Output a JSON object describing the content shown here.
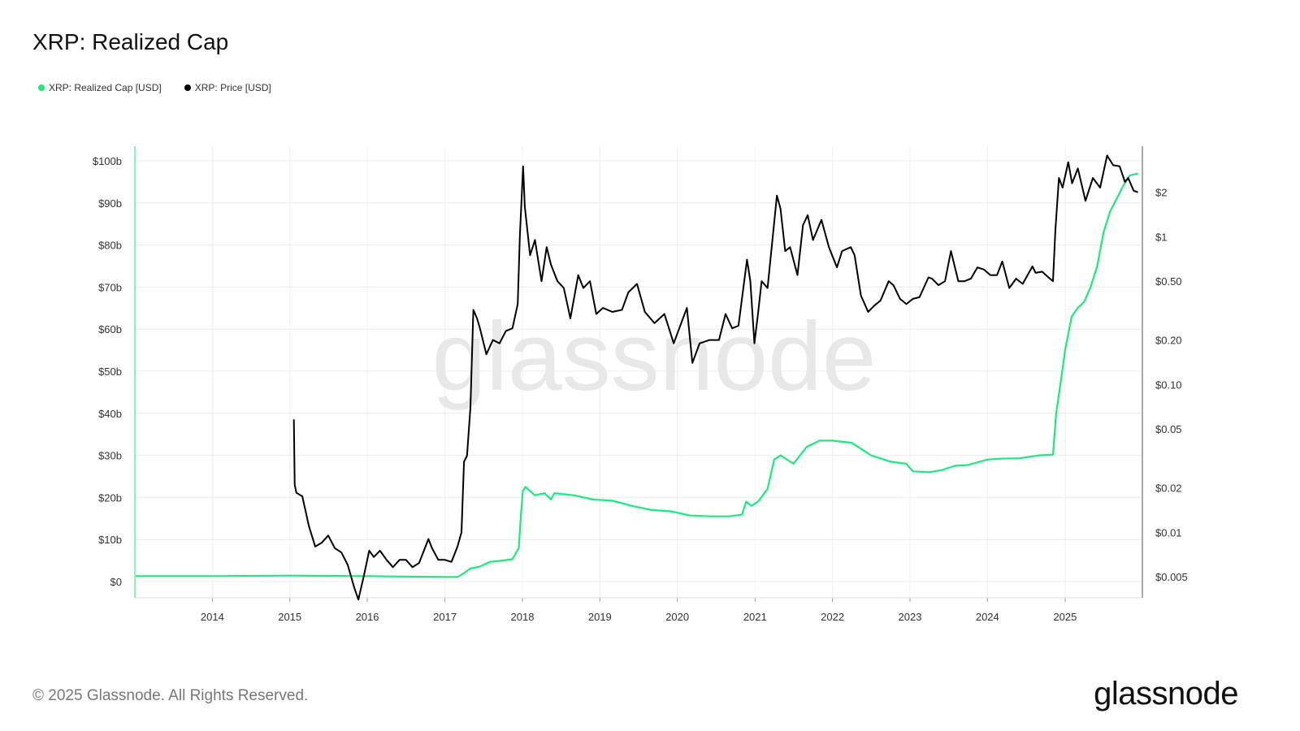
{
  "header": {
    "title": "XRP: Realized Cap"
  },
  "legend": [
    {
      "label": "XRP: Realized Cap [USD]",
      "color": "#1ee87e"
    },
    {
      "label": "XRP: Price [USD]",
      "color": "#000000"
    }
  ],
  "watermark": "glassnode",
  "footer": {
    "copyright": "© 2025 Glassnode. All Rights Reserved.",
    "logo": "glassnode"
  },
  "chart_data": {
    "type": "line",
    "title": "XRP: Realized Cap",
    "x_range": [
      "2013-01",
      "2025-12"
    ],
    "x_ticks": [
      "2014",
      "2015",
      "2016",
      "2017",
      "2018",
      "2019",
      "2020",
      "2021",
      "2022",
      "2023",
      "2024",
      "2025"
    ],
    "y_left": {
      "scale": "linear",
      "range": [
        0,
        100
      ],
      "ticks": [
        "$0",
        "$10b",
        "$20b",
        "$30b",
        "$40b",
        "$50b",
        "$60b",
        "$70b",
        "$80b",
        "$90b",
        "$100b"
      ]
    },
    "y_right": {
      "scale": "log",
      "range": [
        0.0036,
        4.1
      ],
      "ticks": [
        {
          "label": "$0.005",
          "value": 0.005
        },
        {
          "label": "$0.01",
          "value": 0.01
        },
        {
          "label": "$0.02",
          "value": 0.02
        },
        {
          "label": "$0.05",
          "value": 0.05
        },
        {
          "label": "$0.10",
          "value": 0.1
        },
        {
          "label": "$0.20",
          "value": 0.2
        },
        {
          "label": "$0.50",
          "value": 0.5
        },
        {
          "label": "$1",
          "value": 1
        },
        {
          "label": "$2",
          "value": 2
        }
      ]
    },
    "grid": true,
    "legend_position": "top-left",
    "series": [
      {
        "name": "XRP: Realized Cap [USD]",
        "axis": "left",
        "unit": "billion USD",
        "color": "#1ee87e",
        "points": [
          [
            "2013-01-05",
            1.3
          ],
          [
            "2013-02-01",
            1.3
          ],
          [
            "2014-01-01",
            1.3
          ],
          [
            "2015-01-01",
            1.4
          ],
          [
            "2016-01-01",
            1.3
          ],
          [
            "2016-06-01",
            1.2
          ],
          [
            "2017-01-01",
            1.1
          ],
          [
            "2017-03-01",
            1.1
          ],
          [
            "2017-04-01",
            2.0
          ],
          [
            "2017-05-01",
            3.1
          ],
          [
            "2017-06-15",
            3.6
          ],
          [
            "2017-08-01",
            4.7
          ],
          [
            "2017-09-15",
            4.9
          ],
          [
            "2017-11-15",
            5.3
          ],
          [
            "2017-12-15",
            8.0
          ],
          [
            "2017-12-25",
            16.0
          ],
          [
            "2018-01-03",
            21.5
          ],
          [
            "2018-01-15",
            22.5
          ],
          [
            "2018-03-01",
            20.5
          ],
          [
            "2018-04-15",
            21.0
          ],
          [
            "2018-05-15",
            19.5
          ],
          [
            "2018-06-01",
            21.0
          ],
          [
            "2018-09-01",
            20.5
          ],
          [
            "2018-12-01",
            19.5
          ],
          [
            "2019-03-01",
            19.2
          ],
          [
            "2019-06-01",
            18.0
          ],
          [
            "2019-09-01",
            17.0
          ],
          [
            "2019-12-01",
            16.7
          ],
          [
            "2020-03-01",
            15.7
          ],
          [
            "2020-06-01",
            15.5
          ],
          [
            "2020-09-01",
            15.5
          ],
          [
            "2020-11-01",
            15.9
          ],
          [
            "2020-11-20",
            19.0
          ],
          [
            "2020-12-15",
            18.0
          ],
          [
            "2021-01-15",
            19.0
          ],
          [
            "2021-03-01",
            22.0
          ],
          [
            "2021-04-01",
            29.0
          ],
          [
            "2021-05-01",
            30.0
          ],
          [
            "2021-07-01",
            28.0
          ],
          [
            "2021-09-01",
            32.0
          ],
          [
            "2021-11-01",
            33.5
          ],
          [
            "2022-01-01",
            33.5
          ],
          [
            "2022-04-01",
            33.0
          ],
          [
            "2022-07-01",
            30.0
          ],
          [
            "2022-10-01",
            28.5
          ],
          [
            "2022-12-15",
            28.0
          ],
          [
            "2023-01-15",
            26.2
          ],
          [
            "2023-04-01",
            26.0
          ],
          [
            "2023-06-01",
            26.5
          ],
          [
            "2023-08-01",
            27.5
          ],
          [
            "2023-10-01",
            27.7
          ],
          [
            "2024-01-01",
            29.0
          ],
          [
            "2024-03-01",
            29.2
          ],
          [
            "2024-06-01",
            29.3
          ],
          [
            "2024-09-01",
            30.0
          ],
          [
            "2024-11-05",
            30.2
          ],
          [
            "2024-11-20",
            40.0
          ],
          [
            "2024-12-10",
            47.0
          ],
          [
            "2025-01-01",
            55.0
          ],
          [
            "2025-02-01",
            63.0
          ],
          [
            "2025-03-01",
            65.0
          ],
          [
            "2025-04-01",
            66.5
          ],
          [
            "2025-05-01",
            70.0
          ],
          [
            "2025-06-01",
            75.0
          ],
          [
            "2025-07-01",
            83.0
          ],
          [
            "2025-08-01",
            88.0
          ],
          [
            "2025-09-01",
            91.0
          ],
          [
            "2025-10-01",
            94.0
          ],
          [
            "2025-11-01",
            96.5
          ],
          [
            "2025-12-10",
            97.0
          ]
        ]
      },
      {
        "name": "XRP: Price [USD]",
        "axis": "right",
        "unit": "USD",
        "color": "#000000",
        "points": [
          [
            "2015-01-20",
            0.058
          ],
          [
            "2015-01-24",
            0.021
          ],
          [
            "2015-02-01",
            0.0185
          ],
          [
            "2015-03-01",
            0.0175
          ],
          [
            "2015-04-01",
            0.011
          ],
          [
            "2015-05-01",
            0.008
          ],
          [
            "2015-06-01",
            0.0085
          ],
          [
            "2015-07-01",
            0.0095
          ],
          [
            "2015-08-01",
            0.0078
          ],
          [
            "2015-09-01",
            0.0073
          ],
          [
            "2015-10-01",
            0.006
          ],
          [
            "2015-11-01",
            0.0042
          ],
          [
            "2015-11-20",
            0.0035
          ],
          [
            "2015-12-15",
            0.005
          ],
          [
            "2016-01-10",
            0.0075
          ],
          [
            "2016-02-01",
            0.0068
          ],
          [
            "2016-03-01",
            0.0075
          ],
          [
            "2016-04-01",
            0.0065
          ],
          [
            "2016-05-01",
            0.0058
          ],
          [
            "2016-06-01",
            0.0065
          ],
          [
            "2016-07-01",
            0.0065
          ],
          [
            "2016-08-01",
            0.0058
          ],
          [
            "2016-09-01",
            0.0062
          ],
          [
            "2016-10-15",
            0.009
          ],
          [
            "2016-11-01",
            0.0078
          ],
          [
            "2016-12-01",
            0.0065
          ],
          [
            "2017-01-01",
            0.0065
          ],
          [
            "2017-02-01",
            0.0063
          ],
          [
            "2017-03-01",
            0.008
          ],
          [
            "2017-03-20",
            0.01
          ],
          [
            "2017-04-01",
            0.03
          ],
          [
            "2017-04-15",
            0.033
          ],
          [
            "2017-05-01",
            0.07
          ],
          [
            "2017-05-15",
            0.32
          ],
          [
            "2017-06-01",
            0.28
          ],
          [
            "2017-06-15",
            0.24
          ],
          [
            "2017-07-15",
            0.16
          ],
          [
            "2017-08-15",
            0.2
          ],
          [
            "2017-09-15",
            0.19
          ],
          [
            "2017-10-15",
            0.23
          ],
          [
            "2017-11-15",
            0.24
          ],
          [
            "2017-12-10",
            0.35
          ],
          [
            "2017-12-20",
            1.0
          ],
          [
            "2018-01-04",
            3.0
          ],
          [
            "2018-01-12",
            1.6
          ],
          [
            "2018-02-06",
            0.75
          ],
          [
            "2018-03-01",
            0.95
          ],
          [
            "2018-04-01",
            0.5
          ],
          [
            "2018-04-25",
            0.85
          ],
          [
            "2018-05-15",
            0.65
          ],
          [
            "2018-06-15",
            0.5
          ],
          [
            "2018-07-15",
            0.45
          ],
          [
            "2018-08-15",
            0.28
          ],
          [
            "2018-09-21",
            0.55
          ],
          [
            "2018-10-15",
            0.45
          ],
          [
            "2018-11-15",
            0.5
          ],
          [
            "2018-12-15",
            0.3
          ],
          [
            "2019-01-15",
            0.33
          ],
          [
            "2019-03-01",
            0.31
          ],
          [
            "2019-04-15",
            0.32
          ],
          [
            "2019-05-15",
            0.42
          ],
          [
            "2019-06-25",
            0.48
          ],
          [
            "2019-08-01",
            0.31
          ],
          [
            "2019-09-15",
            0.26
          ],
          [
            "2019-11-01",
            0.3
          ],
          [
            "2019-12-15",
            0.19
          ],
          [
            "2020-02-15",
            0.33
          ],
          [
            "2020-03-12",
            0.14
          ],
          [
            "2020-04-15",
            0.19
          ],
          [
            "2020-06-01",
            0.2
          ],
          [
            "2020-07-15",
            0.2
          ],
          [
            "2020-08-15",
            0.3
          ],
          [
            "2020-09-15",
            0.24
          ],
          [
            "2020-10-15",
            0.25
          ],
          [
            "2020-11-24",
            0.7
          ],
          [
            "2020-12-10",
            0.5
          ],
          [
            "2020-12-29",
            0.19
          ],
          [
            "2021-01-15",
            0.3
          ],
          [
            "2021-02-01",
            0.5
          ],
          [
            "2021-03-01",
            0.45
          ],
          [
            "2021-04-14",
            1.9
          ],
          [
            "2021-05-01",
            1.55
          ],
          [
            "2021-05-23",
            0.8
          ],
          [
            "2021-06-15",
            0.85
          ],
          [
            "2021-07-20",
            0.55
          ],
          [
            "2021-08-15",
            1.2
          ],
          [
            "2021-09-06",
            1.4
          ],
          [
            "2021-10-01",
            0.95
          ],
          [
            "2021-11-10",
            1.3
          ],
          [
            "2021-12-15",
            0.85
          ],
          [
            "2022-01-22",
            0.62
          ],
          [
            "2022-02-15",
            0.8
          ],
          [
            "2022-03-28",
            0.85
          ],
          [
            "2022-04-15",
            0.75
          ],
          [
            "2022-05-15",
            0.4
          ],
          [
            "2022-06-18",
            0.31
          ],
          [
            "2022-07-15",
            0.34
          ],
          [
            "2022-08-15",
            0.37
          ],
          [
            "2022-09-23",
            0.5
          ],
          [
            "2022-10-15",
            0.47
          ],
          [
            "2022-11-15",
            0.38
          ],
          [
            "2022-12-15",
            0.35
          ],
          [
            "2023-01-15",
            0.38
          ],
          [
            "2023-02-15",
            0.39
          ],
          [
            "2023-03-29",
            0.53
          ],
          [
            "2023-04-15",
            0.52
          ],
          [
            "2023-05-15",
            0.47
          ],
          [
            "2023-06-15",
            0.5
          ],
          [
            "2023-07-13",
            0.8
          ],
          [
            "2023-08-17",
            0.5
          ],
          [
            "2023-09-15",
            0.5
          ],
          [
            "2023-10-15",
            0.52
          ],
          [
            "2023-11-15",
            0.62
          ],
          [
            "2023-12-15",
            0.6
          ],
          [
            "2024-01-15",
            0.55
          ],
          [
            "2024-02-15",
            0.55
          ],
          [
            "2024-03-11",
            0.68
          ],
          [
            "2024-04-13",
            0.45
          ],
          [
            "2024-05-15",
            0.52
          ],
          [
            "2024-06-15",
            0.48
          ],
          [
            "2024-07-31",
            0.63
          ],
          [
            "2024-08-15",
            0.57
          ],
          [
            "2024-09-15",
            0.58
          ],
          [
            "2024-10-15",
            0.53
          ],
          [
            "2024-11-05",
            0.5
          ],
          [
            "2024-11-16",
            1.1
          ],
          [
            "2024-12-03",
            2.5
          ],
          [
            "2024-12-20",
            2.15
          ],
          [
            "2025-01-16",
            3.2
          ],
          [
            "2025-02-03",
            2.3
          ],
          [
            "2025-03-02",
            2.9
          ],
          [
            "2025-04-07",
            1.75
          ],
          [
            "2025-05-12",
            2.5
          ],
          [
            "2025-06-15",
            2.15
          ],
          [
            "2025-07-18",
            3.55
          ],
          [
            "2025-08-15",
            3.05
          ],
          [
            "2025-09-15",
            3.0
          ],
          [
            "2025-10-10",
            2.35
          ],
          [
            "2025-10-25",
            2.5
          ],
          [
            "2025-11-20",
            2.05
          ],
          [
            "2025-12-10",
            2.0
          ]
        ]
      }
    ]
  }
}
